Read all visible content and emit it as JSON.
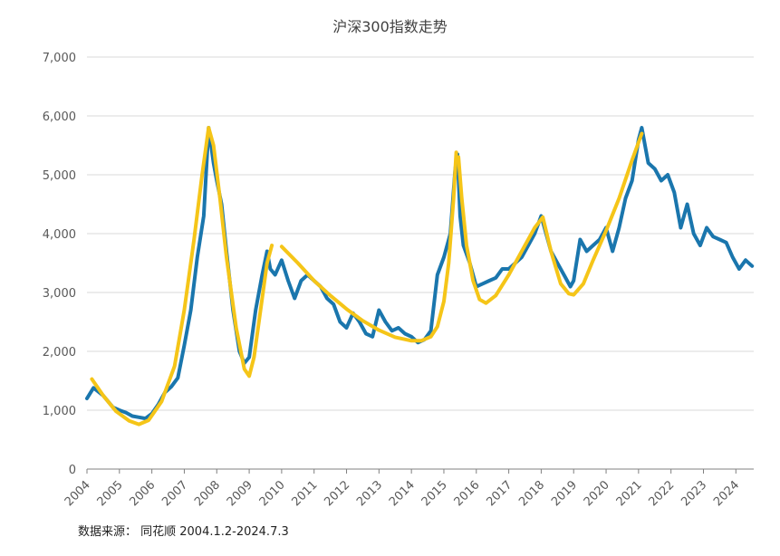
{
  "chart_data": {
    "type": "line",
    "title": "沪深300指数走势",
    "source": "数据来源： 同花顺 2004.1.2-2024.7.3",
    "xlabel": "",
    "ylabel": "",
    "xlim": [
      2004.0,
      2024.55
    ],
    "ylim": [
      0,
      7000
    ],
    "grid": true,
    "y_ticks": [
      0,
      1000,
      2000,
      3000,
      4000,
      5000,
      6000,
      7000
    ],
    "y_tick_labels": [
      "0",
      "1,000",
      "2,000",
      "3,000",
      "4,000",
      "5,000",
      "6,000",
      "7,000"
    ],
    "x_ticks": [
      2004,
      2005,
      2006,
      2007,
      2008,
      2009,
      2010,
      2011,
      2012,
      2013,
      2014,
      2015,
      2016,
      2017,
      2018,
      2019,
      2020,
      2021,
      2022,
      2023,
      2024
    ],
    "x_tick_labels": [
      "2004",
      "2005",
      "2006",
      "2007",
      "2008",
      "2009",
      "2010",
      "2011",
      "2012",
      "2013",
      "2014",
      "2015",
      "2016",
      "2017",
      "2018",
      "2019",
      "2020",
      "2021",
      "2022",
      "2023",
      "2024"
    ],
    "colors": {
      "index_line": "#1a76ad",
      "trend_line": "#f5c518",
      "grid": "#d9d9d9",
      "axis": "#808080"
    },
    "series": [
      {
        "name": "",
        "x": [
          2004.0,
          2004.2,
          2004.5,
          2004.8,
          2005.0,
          2005.2,
          2005.4,
          2005.6,
          2005.8,
          2006.0,
          2006.2,
          2006.4,
          2006.6,
          2006.8,
          2007.0,
          2007.2,
          2007.4,
          2007.6,
          2007.75,
          2007.8,
          2007.9,
          2008.0,
          2008.15,
          2008.3,
          2008.5,
          2008.7,
          2008.85,
          2009.0,
          2009.2,
          2009.4,
          2009.55,
          2009.65,
          2009.8,
          2010.0,
          2010.2,
          2010.4,
          2010.6,
          2010.8,
          2011.0,
          2011.2,
          2011.4,
          2011.6,
          2011.8,
          2012.0,
          2012.2,
          2012.4,
          2012.6,
          2012.8,
          2013.0,
          2013.2,
          2013.4,
          2013.6,
          2013.8,
          2014.0,
          2014.2,
          2014.4,
          2014.6,
          2014.8,
          2015.0,
          2015.2,
          2015.35,
          2015.42,
          2015.5,
          2015.6,
          2015.8,
          2016.0,
          2016.2,
          2016.4,
          2016.6,
          2016.8,
          2017.0,
          2017.2,
          2017.4,
          2017.6,
          2017.8,
          2018.0,
          2018.15,
          2018.3,
          2018.5,
          2018.7,
          2018.9,
          2019.0,
          2019.2,
          2019.4,
          2019.6,
          2019.8,
          2020.0,
          2020.2,
          2020.4,
          2020.6,
          2020.8,
          2021.0,
          2021.1,
          2021.3,
          2021.5,
          2021.7,
          2021.9,
          2022.1,
          2022.3,
          2022.5,
          2022.7,
          2022.9,
          2023.1,
          2023.3,
          2023.5,
          2023.7,
          2023.9,
          2024.1,
          2024.3,
          2024.5
        ],
        "y": [
          1200,
          1380,
          1250,
          1050,
          1000,
          960,
          900,
          880,
          860,
          940,
          1100,
          1300,
          1400,
          1550,
          2100,
          2700,
          3600,
          4300,
          5800,
          5600,
          5200,
          4900,
          4500,
          3700,
          2700,
          2000,
          1800,
          1900,
          2700,
          3300,
          3700,
          3400,
          3300,
          3550,
          3200,
          2900,
          3200,
          3300,
          3200,
          3100,
          2900,
          2800,
          2500,
          2400,
          2650,
          2500,
          2300,
          2250,
          2700,
          2500,
          2350,
          2400,
          2300,
          2250,
          2150,
          2200,
          2350,
          3300,
          3600,
          4000,
          5100,
          5350,
          4300,
          3800,
          3500,
          3100,
          3150,
          3200,
          3250,
          3400,
          3400,
          3500,
          3600,
          3800,
          4000,
          4300,
          4000,
          3700,
          3500,
          3300,
          3100,
          3200,
          3900,
          3700,
          3800,
          3900,
          4100,
          3700,
          4100,
          4600,
          4900,
          5600,
          5800,
          5200,
          5100,
          4900,
          5000,
          4700,
          4100,
          4500,
          4000,
          3800,
          4100,
          3950,
          3900,
          3850,
          3600,
          3400,
          3550,
          3450
        ]
      },
      {
        "name": "",
        "x": [
          2004.15,
          2004.5,
          2004.9,
          2005.3,
          2005.6,
          2005.9,
          2006.3,
          2006.7,
          2007.0,
          2007.3,
          2007.55,
          2007.75,
          2007.9,
          2008.1,
          2008.3,
          2008.6,
          2008.85,
          2009.0,
          2009.15,
          2009.35,
          2009.55,
          2009.7
        ],
        "y": [
          1530,
          1250,
          980,
          820,
          760,
          830,
          1150,
          1750,
          2700,
          3900,
          5000,
          5800,
          5500,
          4600,
          3600,
          2400,
          1700,
          1580,
          1900,
          2700,
          3500,
          3800
        ],
        "style": "segment-1"
      },
      {
        "name": "",
        "x": [
          2010.0,
          2010.5,
          2011.0,
          2011.5,
          2012.0,
          2012.5,
          2013.0,
          2013.5,
          2014.0,
          2014.3,
          2014.6,
          2014.8,
          2015.0,
          2015.15,
          2015.3,
          2015.38
        ],
        "y": [
          3780,
          3500,
          3200,
          2950,
          2720,
          2520,
          2360,
          2240,
          2180,
          2180,
          2250,
          2420,
          2850,
          3500,
          4600,
          5380
        ]
      },
      {
        "name": "",
        "x": [
          2015.45,
          2015.55,
          2015.7,
          2015.9,
          2016.1,
          2016.3,
          2016.6,
          2017.0,
          2017.4,
          2017.8,
          2018.05,
          2018.3,
          2018.6,
          2018.85,
          2019.0,
          2019.3,
          2019.6,
          2020.0,
          2020.4,
          2020.8,
          2021.1
        ],
        "y": [
          5300,
          4600,
          3800,
          3200,
          2880,
          2820,
          2950,
          3300,
          3700,
          4100,
          4280,
          3700,
          3150,
          2980,
          2960,
          3150,
          3550,
          4050,
          4600,
          5250,
          5700
        ]
      }
    ]
  }
}
